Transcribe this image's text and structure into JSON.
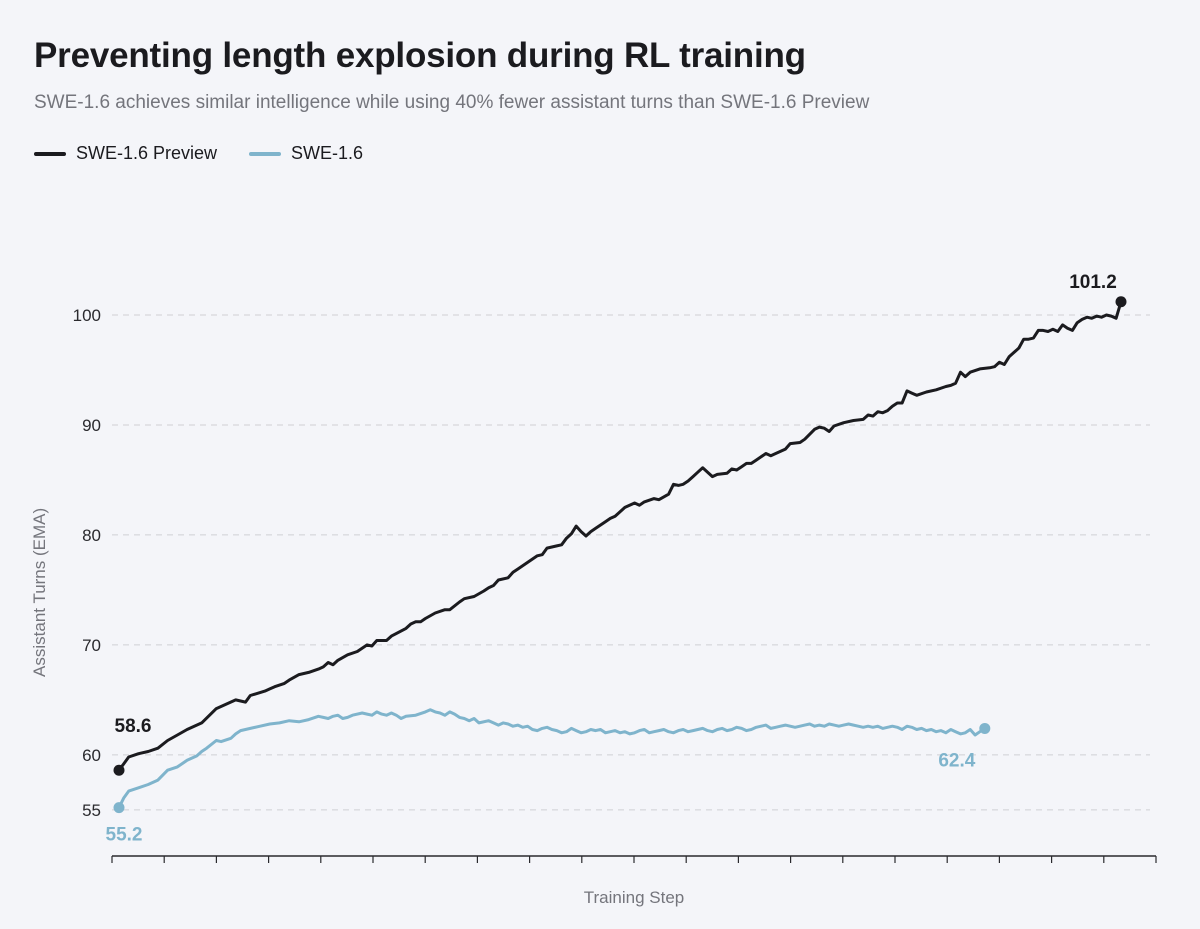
{
  "header": {
    "title": "Preventing length explosion during RL training",
    "subtitle": "SWE-1.6 achieves similar intelligence while using 40% fewer assistant turns than SWE-1.6 Preview"
  },
  "colors": {
    "preview": "#1b1b1f",
    "swe16": "#7fb4cc",
    "grid": "#cfd0d4",
    "axis": "#2a2a2e",
    "tick_text": "#2a2a2e",
    "label_text": "#74757c"
  },
  "chart_data": {
    "type": "line",
    "title": "Preventing length explosion during RL training",
    "subtitle": "SWE-1.6 achieves similar intelligence while using 40% fewer assistant turns than SWE-1.6 Preview",
    "xlabel": "Training Step",
    "ylabel": "Assistant Turns (EMA)",
    "yticks": [
      55,
      60,
      70,
      80,
      90,
      100
    ],
    "ylim": [
      50.8,
      105
    ],
    "xlim": [
      0,
      200
    ],
    "x_tick_count": 21,
    "grid": true,
    "legend_position": "top-left",
    "series": [
      {
        "name": "SWE-1.6 Preview",
        "color": "#1b1b1f",
        "points": [
          [
            0,
            58.6
          ],
          [
            1,
            59.2
          ],
          [
            2,
            59.8
          ],
          [
            4,
            60.1
          ],
          [
            6,
            60.3
          ],
          [
            8,
            60.6
          ],
          [
            10,
            61.3
          ],
          [
            12,
            61.8
          ],
          [
            14,
            62.3
          ],
          [
            17,
            62.9
          ],
          [
            20,
            64.2
          ],
          [
            22,
            64.6
          ],
          [
            24,
            65.0
          ],
          [
            26,
            64.8
          ],
          [
            27,
            65.4
          ],
          [
            30,
            65.8
          ],
          [
            31,
            66.0
          ],
          [
            32,
            66.2
          ],
          [
            34,
            66.5
          ],
          [
            35,
            66.8
          ],
          [
            37,
            67.3
          ],
          [
            39,
            67.5
          ],
          [
            41,
            67.8
          ],
          [
            42,
            68.0
          ],
          [
            43,
            68.4
          ],
          [
            44,
            68.2
          ],
          [
            45,
            68.6
          ],
          [
            47,
            69.1
          ],
          [
            49,
            69.4
          ],
          [
            51,
            70.0
          ],
          [
            52,
            69.9
          ],
          [
            53,
            70.4
          ],
          [
            55,
            70.4
          ],
          [
            56,
            70.8
          ],
          [
            59,
            71.5
          ],
          [
            60,
            71.9
          ],
          [
            61,
            72.1
          ],
          [
            62,
            72.1
          ],
          [
            63,
            72.4
          ],
          [
            65,
            72.9
          ],
          [
            67,
            73.2
          ],
          [
            68,
            73.2
          ],
          [
            70,
            73.9
          ],
          [
            71,
            74.2
          ],
          [
            73,
            74.4
          ],
          [
            75,
            74.9
          ],
          [
            76,
            75.2
          ],
          [
            77,
            75.4
          ],
          [
            78,
            75.9
          ],
          [
            80,
            76.1
          ],
          [
            81,
            76.6
          ],
          [
            82,
            76.9
          ],
          [
            84,
            77.5
          ],
          [
            86,
            78.1
          ],
          [
            87,
            78.2
          ],
          [
            88,
            78.8
          ],
          [
            90,
            79.0
          ],
          [
            91,
            79.1
          ],
          [
            92,
            79.7
          ],
          [
            93,
            80.1
          ],
          [
            94,
            80.8
          ],
          [
            95,
            80.3
          ],
          [
            96,
            79.9
          ],
          [
            97,
            80.3
          ],
          [
            98,
            80.6
          ],
          [
            100,
            81.2
          ],
          [
            101,
            81.5
          ],
          [
            102,
            81.7
          ],
          [
            104,
            82.5
          ],
          [
            106,
            82.9
          ],
          [
            107,
            82.7
          ],
          [
            108,
            83.0
          ],
          [
            110,
            83.3
          ],
          [
            111,
            83.2
          ],
          [
            113,
            83.7
          ],
          [
            114,
            84.6
          ],
          [
            115,
            84.5
          ],
          [
            116,
            84.6
          ],
          [
            117,
            84.9
          ],
          [
            118,
            85.3
          ],
          [
            119,
            85.7
          ],
          [
            120,
            86.1
          ],
          [
            121,
            85.7
          ],
          [
            122,
            85.3
          ],
          [
            123,
            85.5
          ],
          [
            125,
            85.6
          ],
          [
            126,
            86.0
          ],
          [
            127,
            85.9
          ],
          [
            128,
            86.2
          ],
          [
            129,
            86.5
          ],
          [
            130,
            86.5
          ],
          [
            131,
            86.8
          ],
          [
            132,
            87.1
          ],
          [
            133,
            87.4
          ],
          [
            134,
            87.2
          ],
          [
            135,
            87.4
          ],
          [
            137,
            87.8
          ],
          [
            138,
            88.3
          ],
          [
            140,
            88.4
          ],
          [
            141,
            88.7
          ],
          [
            143,
            89.6
          ],
          [
            144,
            89.8
          ],
          [
            145,
            89.7
          ],
          [
            146,
            89.4
          ],
          [
            147,
            89.9
          ],
          [
            149,
            90.2
          ],
          [
            151,
            90.4
          ],
          [
            153,
            90.5
          ],
          [
            154,
            90.9
          ],
          [
            155,
            90.8
          ],
          [
            156,
            91.2
          ],
          [
            157,
            91.1
          ],
          [
            158,
            91.3
          ],
          [
            159,
            91.7
          ],
          [
            160,
            92.0
          ],
          [
            161,
            92.0
          ],
          [
            162,
            93.1
          ],
          [
            163,
            92.9
          ],
          [
            164,
            92.7
          ],
          [
            166,
            93.0
          ],
          [
            168,
            93.2
          ],
          [
            170,
            93.5
          ],
          [
            171,
            93.6
          ],
          [
            172,
            93.8
          ],
          [
            173,
            94.8
          ],
          [
            174,
            94.4
          ],
          [
            175,
            94.8
          ],
          [
            177,
            95.1
          ],
          [
            179,
            95.2
          ],
          [
            180,
            95.3
          ],
          [
            181,
            95.7
          ],
          [
            182,
            95.5
          ],
          [
            183,
            96.2
          ],
          [
            184,
            96.6
          ],
          [
            185,
            97.0
          ],
          [
            186,
            97.8
          ],
          [
            187,
            97.8
          ],
          [
            188,
            97.9
          ],
          [
            189,
            98.6
          ],
          [
            190,
            98.6
          ],
          [
            191,
            98.5
          ],
          [
            192,
            98.7
          ],
          [
            193,
            98.5
          ],
          [
            194,
            99.1
          ],
          [
            195,
            98.8
          ],
          [
            196,
            98.6
          ],
          [
            197,
            99.3
          ],
          [
            198,
            99.6
          ],
          [
            199,
            99.8
          ],
          [
            200,
            99.7
          ],
          [
            201,
            99.9
          ],
          [
            202,
            99.8
          ],
          [
            203,
            100.0
          ],
          [
            204,
            99.9
          ],
          [
            205,
            99.7
          ],
          [
            206,
            101.2
          ]
        ],
        "start_label": "58.6",
        "end_label": "101.2"
      },
      {
        "name": "SWE-1.6",
        "color": "#7fb4cc",
        "points": [
          [
            0,
            55.2
          ],
          [
            1,
            56.1
          ],
          [
            2,
            56.7
          ],
          [
            4,
            57.0
          ],
          [
            6,
            57.3
          ],
          [
            8,
            57.7
          ],
          [
            10,
            58.6
          ],
          [
            12,
            58.9
          ],
          [
            14,
            59.5
          ],
          [
            16,
            59.9
          ],
          [
            17,
            60.3
          ],
          [
            18,
            60.6
          ],
          [
            20,
            61.3
          ],
          [
            21,
            61.2
          ],
          [
            23,
            61.5
          ],
          [
            24,
            61.9
          ],
          [
            25,
            62.2
          ],
          [
            27,
            62.4
          ],
          [
            29,
            62.6
          ],
          [
            31,
            62.8
          ],
          [
            33,
            62.9
          ],
          [
            35,
            63.1
          ],
          [
            37,
            63.0
          ],
          [
            39,
            63.2
          ],
          [
            41,
            63.5
          ],
          [
            42,
            63.4
          ],
          [
            43,
            63.3
          ],
          [
            44,
            63.5
          ],
          [
            45,
            63.6
          ],
          [
            46,
            63.3
          ],
          [
            47,
            63.4
          ],
          [
            48,
            63.6
          ],
          [
            50,
            63.8
          ],
          [
            51,
            63.7
          ],
          [
            52,
            63.6
          ],
          [
            53,
            63.9
          ],
          [
            54,
            63.7
          ],
          [
            55,
            63.6
          ],
          [
            56,
            63.8
          ],
          [
            57,
            63.6
          ],
          [
            58,
            63.3
          ],
          [
            59,
            63.5
          ],
          [
            61,
            63.6
          ],
          [
            63,
            63.9
          ],
          [
            64,
            64.1
          ],
          [
            65,
            63.9
          ],
          [
            66,
            63.8
          ],
          [
            67,
            63.6
          ],
          [
            68,
            63.9
          ],
          [
            69,
            63.7
          ],
          [
            70,
            63.4
          ],
          [
            71,
            63.3
          ],
          [
            72,
            63.1
          ],
          [
            73,
            63.3
          ],
          [
            74,
            62.9
          ],
          [
            76,
            63.1
          ],
          [
            77,
            62.9
          ],
          [
            78,
            62.7
          ],
          [
            79,
            62.9
          ],
          [
            80,
            62.8
          ],
          [
            81,
            62.6
          ],
          [
            82,
            62.7
          ],
          [
            83,
            62.5
          ],
          [
            84,
            62.6
          ],
          [
            85,
            62.3
          ],
          [
            86,
            62.2
          ],
          [
            87,
            62.4
          ],
          [
            88,
            62.5
          ],
          [
            89,
            62.3
          ],
          [
            90,
            62.2
          ],
          [
            91,
            62.0
          ],
          [
            92,
            62.1
          ],
          [
            93,
            62.4
          ],
          [
            94,
            62.2
          ],
          [
            95,
            62.0
          ],
          [
            96,
            62.1
          ],
          [
            97,
            62.3
          ],
          [
            98,
            62.2
          ],
          [
            99,
            62.3
          ],
          [
            100,
            62.0
          ],
          [
            101,
            62.1
          ],
          [
            102,
            62.2
          ],
          [
            103,
            62.0
          ],
          [
            104,
            62.1
          ],
          [
            105,
            61.9
          ],
          [
            106,
            62.0
          ],
          [
            107,
            62.2
          ],
          [
            108,
            62.3
          ],
          [
            109,
            62.0
          ],
          [
            110,
            62.1
          ],
          [
            111,
            62.2
          ],
          [
            112,
            62.3
          ],
          [
            113,
            62.1
          ],
          [
            114,
            62.0
          ],
          [
            115,
            62.2
          ],
          [
            116,
            62.3
          ],
          [
            117,
            62.1
          ],
          [
            118,
            62.2
          ],
          [
            119,
            62.3
          ],
          [
            120,
            62.4
          ],
          [
            121,
            62.2
          ],
          [
            122,
            62.1
          ],
          [
            123,
            62.3
          ],
          [
            124,
            62.4
          ],
          [
            125,
            62.2
          ],
          [
            126,
            62.3
          ],
          [
            127,
            62.5
          ],
          [
            128,
            62.4
          ],
          [
            129,
            62.2
          ],
          [
            130,
            62.3
          ],
          [
            131,
            62.5
          ],
          [
            132,
            62.6
          ],
          [
            133,
            62.7
          ],
          [
            134,
            62.4
          ],
          [
            135,
            62.5
          ],
          [
            136,
            62.6
          ],
          [
            137,
            62.7
          ],
          [
            138,
            62.6
          ],
          [
            139,
            62.5
          ],
          [
            140,
            62.6
          ],
          [
            141,
            62.7
          ],
          [
            142,
            62.8
          ],
          [
            143,
            62.6
          ],
          [
            144,
            62.7
          ],
          [
            145,
            62.6
          ],
          [
            146,
            62.8
          ],
          [
            147,
            62.7
          ],
          [
            148,
            62.6
          ],
          [
            149,
            62.7
          ],
          [
            150,
            62.8
          ],
          [
            151,
            62.7
          ],
          [
            152,
            62.6
          ],
          [
            153,
            62.5
          ],
          [
            154,
            62.6
          ],
          [
            155,
            62.5
          ],
          [
            156,
            62.6
          ],
          [
            157,
            62.4
          ],
          [
            158,
            62.5
          ],
          [
            159,
            62.6
          ],
          [
            160,
            62.5
          ],
          [
            161,
            62.3
          ],
          [
            162,
            62.6
          ],
          [
            163,
            62.5
          ],
          [
            164,
            62.3
          ],
          [
            165,
            62.4
          ],
          [
            166,
            62.2
          ],
          [
            167,
            62.3
          ],
          [
            168,
            62.1
          ],
          [
            169,
            62.2
          ],
          [
            170,
            62.0
          ],
          [
            171,
            62.3
          ],
          [
            172,
            62.1
          ],
          [
            173,
            61.9
          ],
          [
            174,
            62.0
          ],
          [
            175,
            62.3
          ],
          [
            176,
            61.8
          ],
          [
            177,
            62.1
          ],
          [
            178,
            62.4
          ]
        ],
        "start_label": "55.2",
        "end_label": "62.4"
      }
    ]
  }
}
